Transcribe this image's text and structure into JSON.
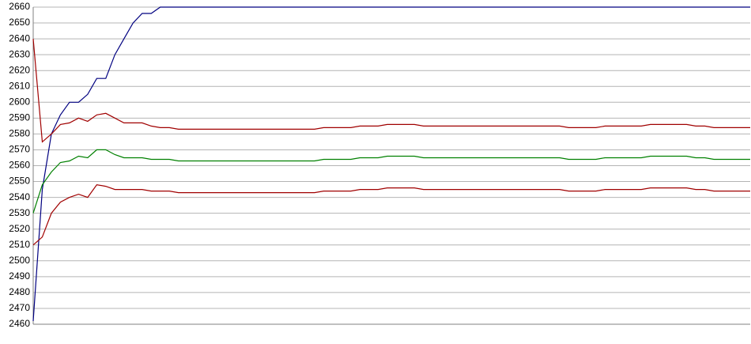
{
  "chart_data": {
    "type": "line",
    "ylim": [
      2460,
      2660
    ],
    "yticks": [
      2460,
      2470,
      2480,
      2490,
      2500,
      2510,
      2520,
      2530,
      2540,
      2550,
      2560,
      2570,
      2580,
      2590,
      2600,
      2610,
      2620,
      2630,
      2640,
      2650,
      2660
    ],
    "grid": true,
    "series": [
      {
        "color": "#000080",
        "values": [
          2462,
          2545,
          2580,
          2592,
          2600,
          2600,
          2605,
          2615,
          2615,
          2630,
          2640,
          2650,
          2656,
          2656,
          2660,
          2660,
          2660,
          2660,
          2660,
          2660,
          2660,
          2660,
          2660,
          2660,
          2660,
          2660,
          2660,
          2660,
          2660,
          2660,
          2660,
          2660,
          2660,
          2660,
          2660,
          2660,
          2660,
          2660,
          2660,
          2660,
          2660,
          2660,
          2660,
          2660,
          2660,
          2660,
          2660,
          2660,
          2660,
          2660,
          2660,
          2660,
          2660,
          2660,
          2660,
          2660,
          2660,
          2660,
          2660,
          2660,
          2660,
          2660,
          2660,
          2660,
          2660,
          2660,
          2660,
          2660,
          2660,
          2660,
          2660,
          2660,
          2660,
          2660,
          2660,
          2660,
          2660,
          2660,
          2660,
          2660
        ]
      },
      {
        "color": "#a00000",
        "values": [
          2640,
          2575,
          2580,
          2586,
          2587,
          2590,
          2588,
          2592,
          2593,
          2590,
          2587,
          2587,
          2587,
          2585,
          2584,
          2584,
          2583,
          2583,
          2583,
          2583,
          2583,
          2583,
          2583,
          2583,
          2583,
          2583,
          2583,
          2583,
          2583,
          2583,
          2583,
          2583,
          2584,
          2584,
          2584,
          2584,
          2585,
          2585,
          2585,
          2586,
          2586,
          2586,
          2586,
          2585,
          2585,
          2585,
          2585,
          2585,
          2585,
          2585,
          2585,
          2585,
          2585,
          2585,
          2585,
          2585,
          2585,
          2585,
          2585,
          2584,
          2584,
          2584,
          2584,
          2585,
          2585,
          2585,
          2585,
          2585,
          2586,
          2586,
          2586,
          2586,
          2586,
          2585,
          2585,
          2584,
          2584,
          2584,
          2584,
          2584
        ]
      },
      {
        "color": "#008000",
        "values": [
          2530,
          2548,
          2556,
          2562,
          2563,
          2566,
          2565,
          2570,
          2570,
          2567,
          2565,
          2565,
          2565,
          2564,
          2564,
          2564,
          2563,
          2563,
          2563,
          2563,
          2563,
          2563,
          2563,
          2563,
          2563,
          2563,
          2563,
          2563,
          2563,
          2563,
          2563,
          2563,
          2564,
          2564,
          2564,
          2564,
          2565,
          2565,
          2565,
          2566,
          2566,
          2566,
          2566,
          2565,
          2565,
          2565,
          2565,
          2565,
          2565,
          2565,
          2565,
          2565,
          2565,
          2565,
          2565,
          2565,
          2565,
          2565,
          2565,
          2564,
          2564,
          2564,
          2564,
          2565,
          2565,
          2565,
          2565,
          2565,
          2566,
          2566,
          2566,
          2566,
          2566,
          2565,
          2565,
          2564,
          2564,
          2564,
          2564,
          2564
        ]
      },
      {
        "color": "#a00000",
        "values": [
          2510,
          2515,
          2530,
          2537,
          2540,
          2542,
          2540,
          2548,
          2547,
          2545,
          2545,
          2545,
          2545,
          2544,
          2544,
          2544,
          2543,
          2543,
          2543,
          2543,
          2543,
          2543,
          2543,
          2543,
          2543,
          2543,
          2543,
          2543,
          2543,
          2543,
          2543,
          2543,
          2544,
          2544,
          2544,
          2544,
          2545,
          2545,
          2545,
          2546,
          2546,
          2546,
          2546,
          2545,
          2545,
          2545,
          2545,
          2545,
          2545,
          2545,
          2545,
          2545,
          2545,
          2545,
          2545,
          2545,
          2545,
          2545,
          2545,
          2544,
          2544,
          2544,
          2544,
          2545,
          2545,
          2545,
          2545,
          2545,
          2546,
          2546,
          2546,
          2546,
          2546,
          2545,
          2545,
          2544,
          2544,
          2544,
          2544,
          2544
        ]
      }
    ]
  }
}
